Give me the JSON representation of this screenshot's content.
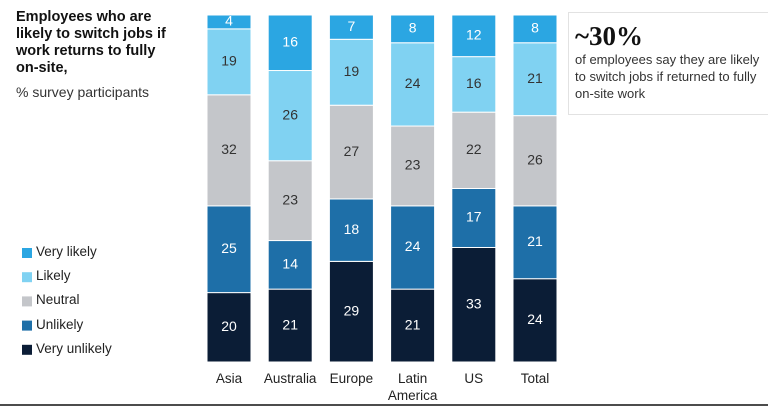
{
  "chart_data": {
    "type": "stacked_bar",
    "title": "Employees who are likely to switch jobs if work returns to fully on-site,",
    "subtitle": "% survey participants",
    "callout": {
      "value": "~30%",
      "text": "of employees say they are likely to switch jobs if returned to fully on-site work"
    },
    "categories": [
      "Asia",
      "Australia",
      "Europe",
      "Latin America",
      "US",
      "Total"
    ],
    "ylim": [
      0,
      100
    ],
    "series": [
      {
        "name": "Very unlikely",
        "color": "#0b1d36",
        "values": [
          20,
          21,
          29,
          21,
          33,
          24
        ]
      },
      {
        "name": "Unlikely",
        "color": "#1e6fa8",
        "values": [
          25,
          14,
          18,
          24,
          17,
          21
        ]
      },
      {
        "name": "Neutral",
        "color": "#c4c6ca",
        "values": [
          32,
          23,
          27,
          23,
          22,
          26
        ]
      },
      {
        "name": "Likely",
        "color": "#80d2f2",
        "values": [
          19,
          26,
          19,
          24,
          16,
          21
        ]
      },
      {
        "name": "Very likely",
        "color": "#2ba6e2",
        "values": [
          4,
          16,
          7,
          8,
          12,
          8
        ]
      }
    ]
  }
}
